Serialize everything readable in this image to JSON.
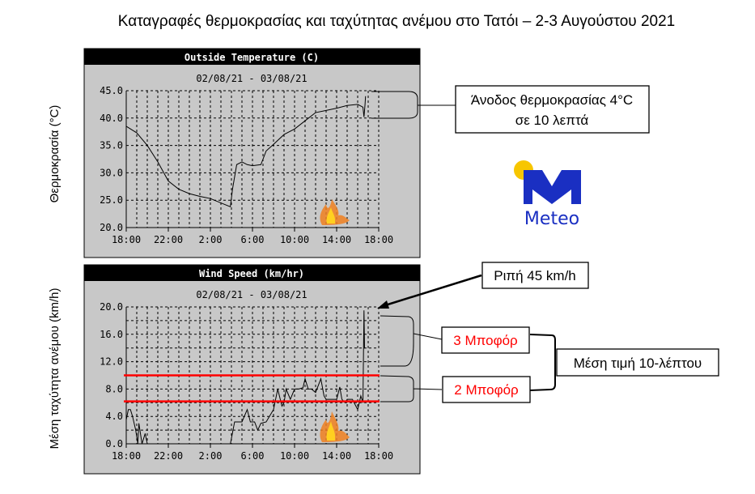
{
  "title": "Καταγραφές θερμοκρασίας και ταχύτητας ανέμου στο Τατόι – 2-3 Αυγούστου 2021",
  "chart_data": [
    {
      "type": "line",
      "title": "Outside Temperature (C)",
      "subtitle": "02/08/21 - 03/08/21",
      "ylabel": "Θερμοκρασία (°C)",
      "xlabel": "",
      "ylim": [
        20,
        45
      ],
      "yticks": [
        "45.0",
        "40.0",
        "35.0",
        "30.0",
        "25.0",
        "20.0"
      ],
      "xticks": [
        "18:00",
        "22:00",
        "2:00",
        "6:00",
        "10:00",
        "14:00",
        "18:00"
      ],
      "grid": true,
      "x_hours_since_1800": [
        0,
        1,
        2,
        3,
        4,
        5,
        6,
        7,
        8,
        9,
        9.9,
        10.1,
        10.5,
        11,
        11.5,
        12,
        12.8,
        13.3,
        14,
        15,
        16,
        17,
        18,
        19,
        20,
        21,
        22,
        22.5,
        22.6,
        22.7,
        22.75
      ],
      "values": [
        38.5,
        37.3,
        35,
        32,
        28.5,
        27,
        26.2,
        25.7,
        25.3,
        24.5,
        23.8,
        27,
        31.5,
        32,
        31.5,
        31.3,
        31.5,
        34,
        35.2,
        37,
        38,
        39.5,
        41,
        41.4,
        41.8,
        42.3,
        42.5,
        42,
        40.2,
        42.5,
        44
      ]
    },
    {
      "type": "line",
      "title": "Wind Speed (km/hr)",
      "subtitle": "02/08/21 - 03/08/21",
      "ylabel": "Μέση ταχύτητα ανέμου (km/h)",
      "xlabel": "",
      "ylim": [
        0,
        20
      ],
      "yticks": [
        "20.0",
        "16.0",
        "12.0",
        "8.0",
        "4.0",
        "0.0"
      ],
      "xticks": [
        "18:00",
        "22:00",
        "2:00",
        "6:00",
        "10:00",
        "14:00",
        "18:00"
      ],
      "grid": true,
      "segments": [
        {
          "x": [
            0,
            0.2,
            0.4,
            0.6,
            0.9,
            1.1,
            1.2,
            1.5,
            1.8,
            2.0,
            2.3
          ],
          "values": [
            3.5,
            5,
            5,
            4,
            2,
            0,
            3,
            0,
            1.5,
            0,
            0
          ]
        },
        {
          "x": [
            9.9,
            10.3,
            11,
            11.5,
            11.8,
            12.2,
            12.5,
            12.8,
            13.3,
            14,
            14.4,
            14.8,
            15,
            15.2,
            15.6,
            16,
            16.4,
            16.8,
            17,
            17.3,
            17.6,
            18,
            18.5,
            18.8,
            19,
            19.5,
            20,
            20.3,
            20.5,
            20.8,
            21,
            21.5,
            22,
            22.3,
            22.5,
            22.6,
            22.65,
            22.7
          ],
          "values": [
            0,
            3.2,
            3.2,
            5,
            3.2,
            3.2,
            2,
            3,
            3.2,
            5,
            8,
            5.5,
            6,
            8,
            6.5,
            8,
            8,
            8.2,
            9.5,
            8,
            8,
            7.5,
            9.5,
            7,
            6.5,
            6.5,
            6.5,
            8.3,
            6.5,
            6,
            6.5,
            6.5,
            5,
            7,
            6,
            19.5,
            14,
            14
          ]
        }
      ],
      "reference_lines": [
        {
          "value": 10,
          "color": "#ff0000"
        },
        {
          "value": 6.2,
          "color": "#ff0000"
        }
      ]
    }
  ],
  "annotations": {
    "temp_rise_line1": "Άνοδος θερμοκρασίας 4°C",
    "temp_rise_line2": "σε 10 λεπτά",
    "gust": "Ριπή 45 km/h",
    "beaufort3": "3 Μποφόρ",
    "beaufort2": "2 Μποφόρ",
    "mean10": "Μέση τιμή 10-λέπτου"
  },
  "logo": {
    "text": "Meteo",
    "blue": "#1a2fc2",
    "sun": "#f7c600"
  },
  "colors": {
    "panel_bg": "#c8c8c8",
    "title_bar": "#000000",
    "annotation_red": "#ff0000"
  }
}
